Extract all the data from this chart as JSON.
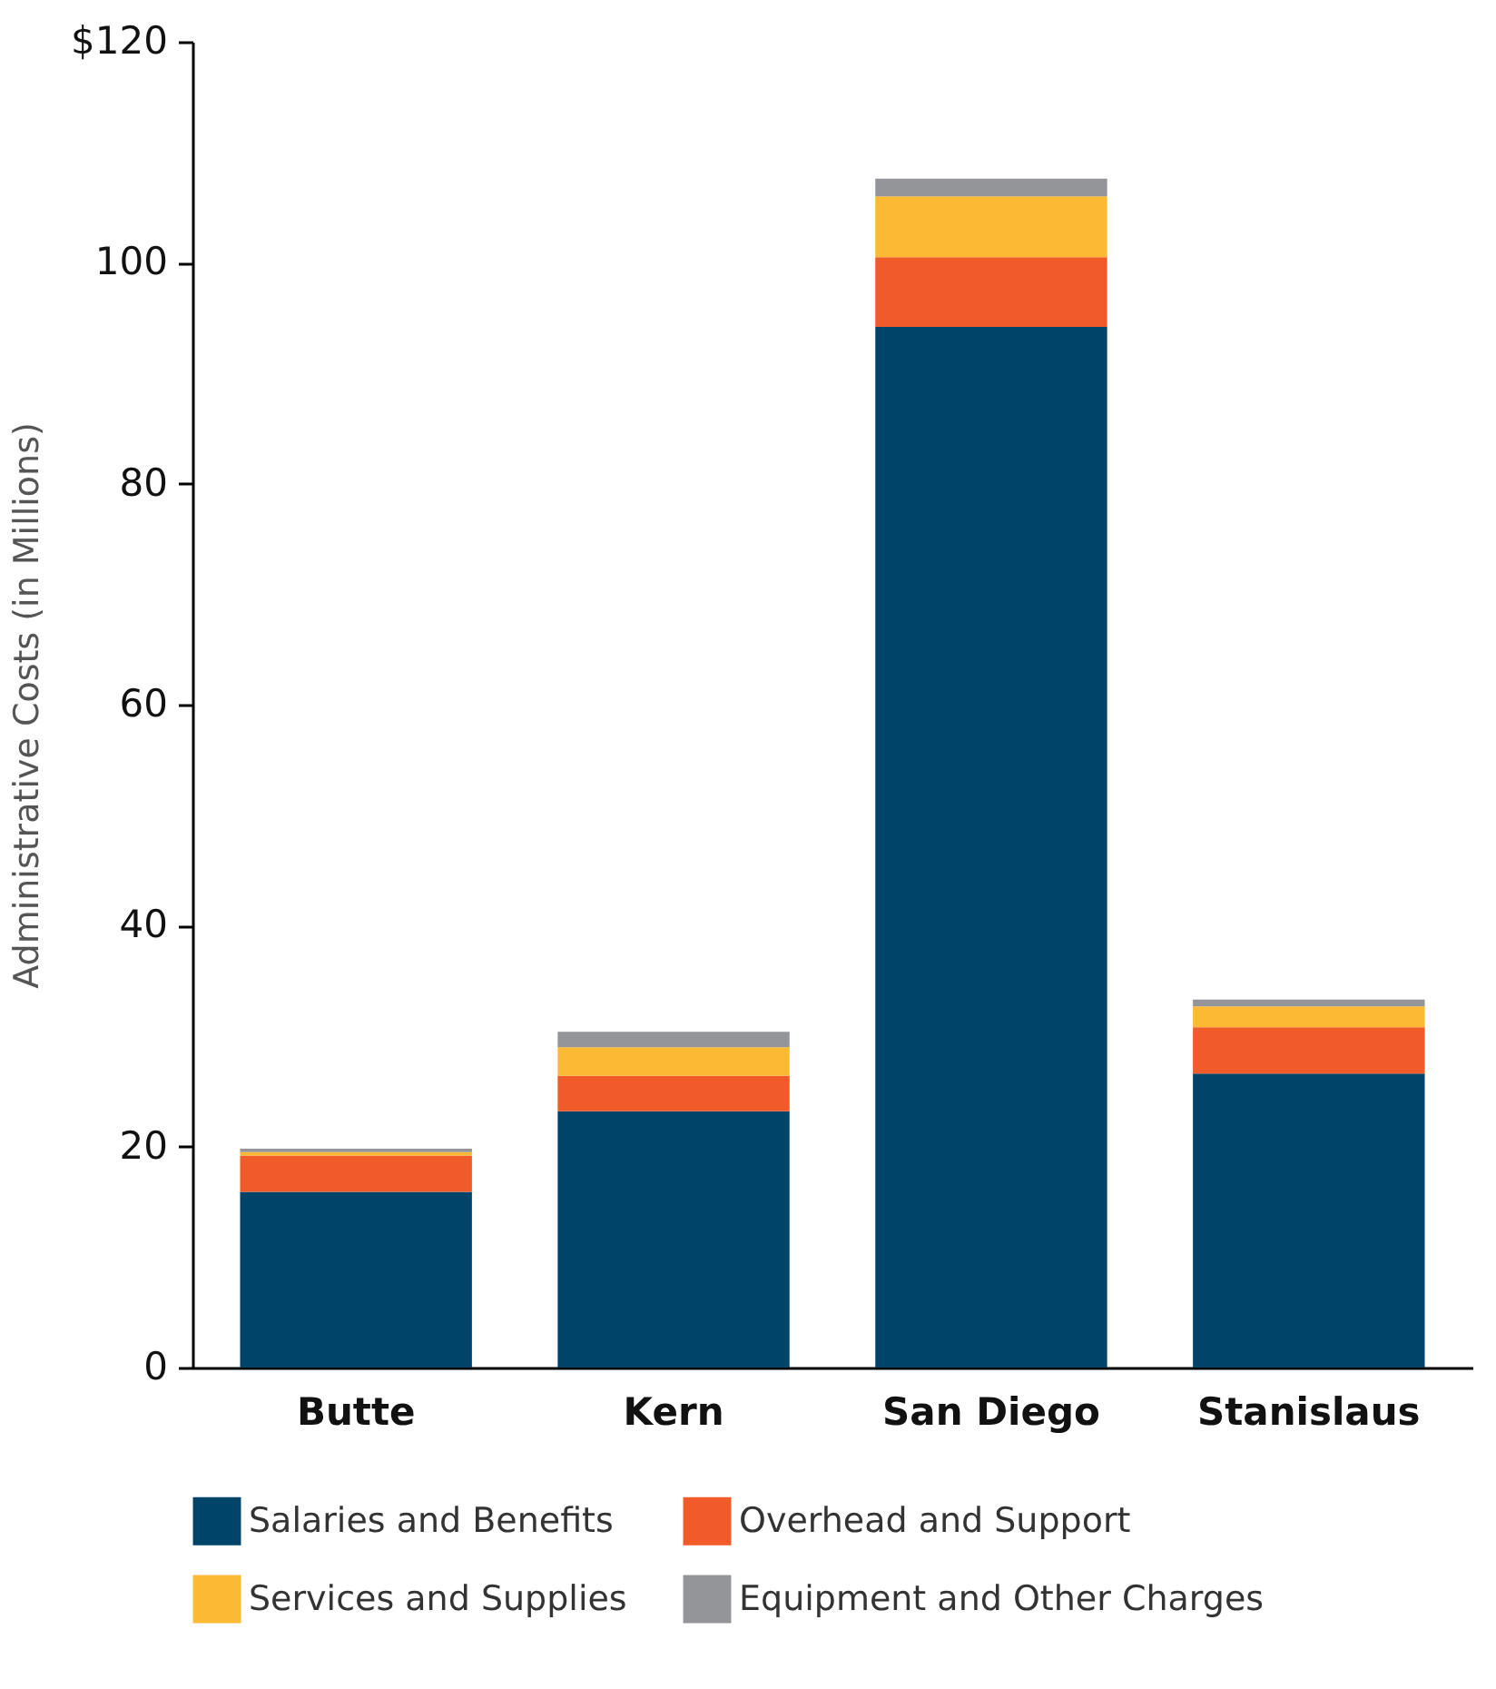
{
  "chart_data": {
    "type": "bar",
    "stacked": true,
    "ylabel": "Administrative Costs (in Millions)",
    "categories": [
      "Butte",
      "Kern",
      "San Diego",
      "Stanislaus"
    ],
    "series": [
      {
        "name": "Salaries and Benefits",
        "color": "#00446a",
        "values": [
          15.9,
          23.2,
          94.2,
          26.6
        ]
      },
      {
        "name": "Overhead and Support",
        "color": "#f15a29",
        "values": [
          3.3,
          3.2,
          6.3,
          4.2
        ]
      },
      {
        "name": "Services and Supplies",
        "color": "#fbb934",
        "values": [
          0.3,
          2.6,
          5.5,
          1.9
        ]
      },
      {
        "name": "Equipment and Other Charges",
        "color": "#939598",
        "values": [
          0.3,
          1.4,
          1.6,
          0.6
        ]
      }
    ],
    "ylim": [
      0,
      120
    ],
    "yticks": [
      0,
      20,
      40,
      60,
      80,
      100,
      {
        "value": 120,
        "label": "$120"
      }
    ],
    "grid": false,
    "legend": "bottom"
  }
}
